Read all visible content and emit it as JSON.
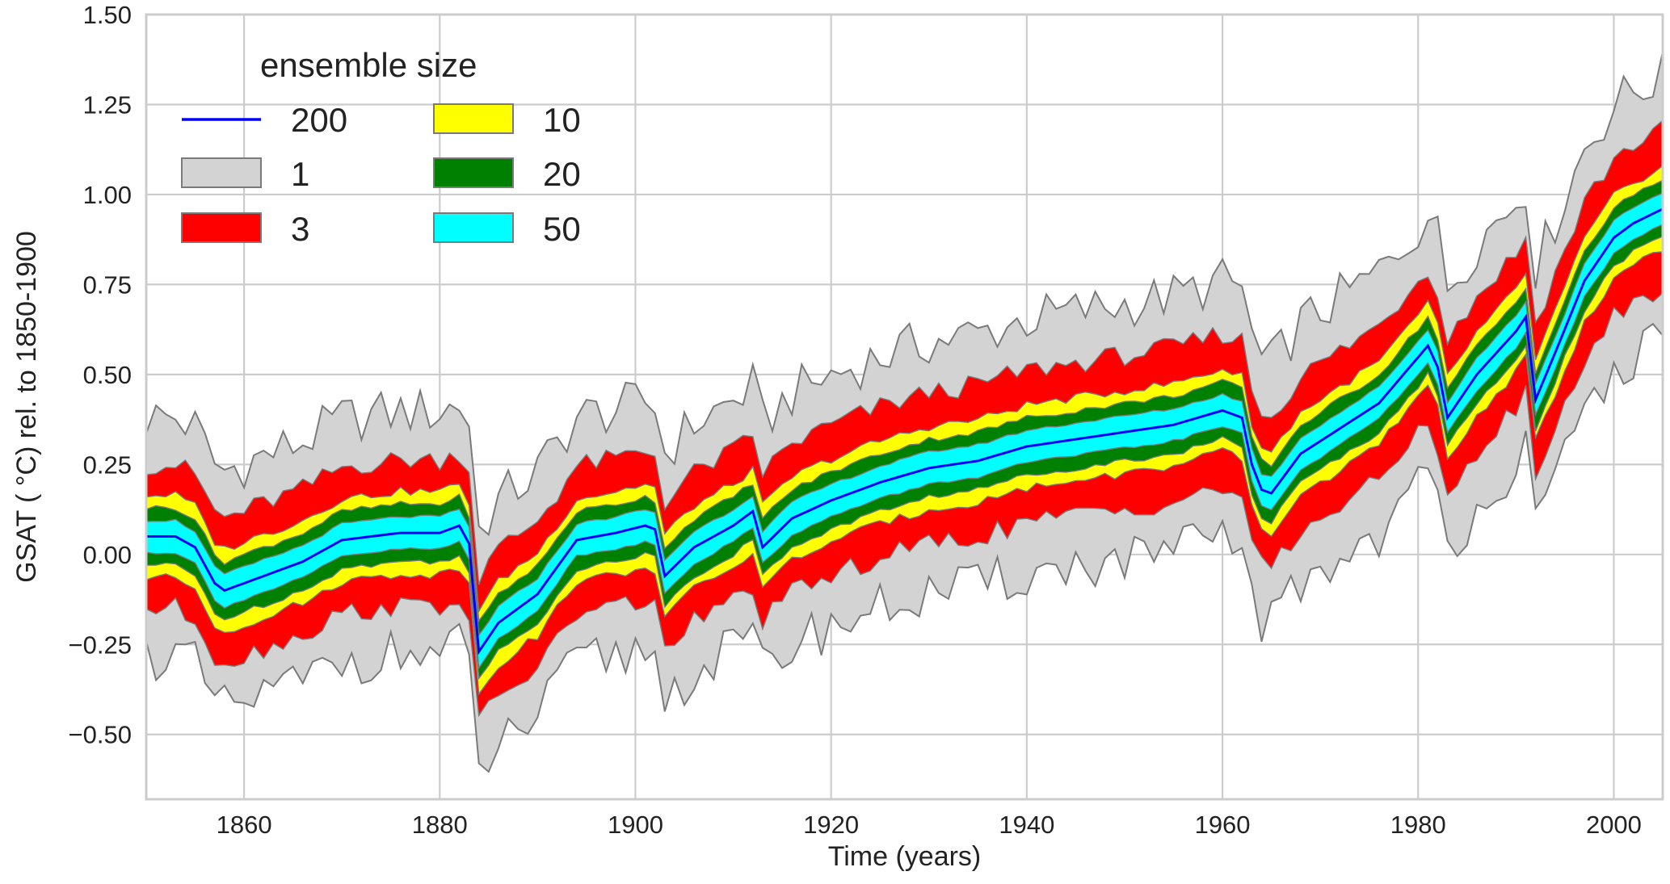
{
  "chart_data": {
    "type": "area",
    "xlabel": "Time (years)",
    "ylabel": "GSAT ( °C) rel. to 1850-1900",
    "xlim": [
      1850,
      2005
    ],
    "ylim": [
      -0.68,
      1.5
    ],
    "xticks": [
      1860,
      1880,
      1900,
      1920,
      1940,
      1960,
      1980,
      2000
    ],
    "xtick_labels": [
      "1860",
      "1880",
      "1900",
      "1920",
      "1940",
      "1960",
      "1980",
      "2000"
    ],
    "yticks": [
      -0.5,
      -0.25,
      0.0,
      0.25,
      0.5,
      0.75,
      1.0,
      1.25,
      1.5
    ],
    "ytick_labels": [
      "−0.50",
      "−0.25",
      "0.00",
      "0.25",
      "0.50",
      "0.75",
      "1.00",
      "1.25",
      "1.50"
    ],
    "grid": true,
    "legend": {
      "title": "ensemble size",
      "placement": "top-left",
      "entries": [
        {
          "label": "200",
          "color": "#0000ff",
          "kind": "line"
        },
        {
          "label": "1",
          "color": "#d3d3d3",
          "kind": "patch"
        },
        {
          "label": "3",
          "color": "#ff0000",
          "kind": "patch"
        },
        {
          "label": "10",
          "color": "#ffff00",
          "kind": "patch"
        },
        {
          "label": "20",
          "color": "#008000",
          "kind": "patch"
        },
        {
          "label": "50",
          "color": "#00ffff",
          "kind": "patch"
        }
      ]
    },
    "mean_keyframes": {
      "x": [
        1850,
        1853,
        1855,
        1857,
        1858,
        1862,
        1866,
        1870,
        1876,
        1880,
        1882,
        1883,
        1884,
        1886,
        1890,
        1894,
        1898,
        1901,
        1902,
        1903,
        1906,
        1910,
        1912,
        1913,
        1916,
        1920,
        1925,
        1930,
        1935,
        1940,
        1945,
        1950,
        1955,
        1960,
        1962,
        1963,
        1964,
        1965,
        1968,
        1972,
        1976,
        1981,
        1982,
        1983,
        1986,
        1990,
        1991,
        1992,
        1994,
        1997,
        2000,
        2002,
        2005
      ],
      "y": [
        0.05,
        0.05,
        0.02,
        -0.08,
        -0.1,
        -0.06,
        -0.02,
        0.04,
        0.06,
        0.06,
        0.08,
        0.03,
        -0.27,
        -0.19,
        -0.11,
        0.04,
        0.06,
        0.08,
        0.07,
        -0.06,
        0.02,
        0.08,
        0.12,
        0.02,
        0.1,
        0.15,
        0.2,
        0.24,
        0.26,
        0.3,
        0.32,
        0.34,
        0.36,
        0.4,
        0.38,
        0.25,
        0.18,
        0.17,
        0.28,
        0.35,
        0.42,
        0.58,
        0.52,
        0.38,
        0.5,
        0.62,
        0.66,
        0.43,
        0.56,
        0.76,
        0.88,
        0.92,
        0.96
      ]
    },
    "ensemble_series": [
      {
        "name": "1",
        "color": "#d3d3d3",
        "half_width_base": 0.33,
        "half_width_trend": 0.04,
        "noise_amplitude": 0.07
      },
      {
        "name": "3",
        "color": "#ff0000",
        "half_width_base": 0.2,
        "half_width_trend": 0.02,
        "noise_amplitude": 0.03
      },
      {
        "name": "10",
        "color": "#ffff00",
        "half_width_base": 0.115,
        "half_width_trend": 0.0,
        "noise_amplitude": 0.012
      },
      {
        "name": "20",
        "color": "#008000",
        "half_width_base": 0.08,
        "half_width_trend": 0.0,
        "noise_amplitude": 0.008
      },
      {
        "name": "50",
        "color": "#00ffff",
        "half_width_base": 0.045,
        "half_width_trend": 0.0,
        "noise_amplitude": 0.004
      }
    ],
    "mean_series": {
      "name": "200",
      "color": "#0000ff"
    },
    "outline_color": "#7a7a7a",
    "years": [
      1850,
      2005
    ]
  }
}
